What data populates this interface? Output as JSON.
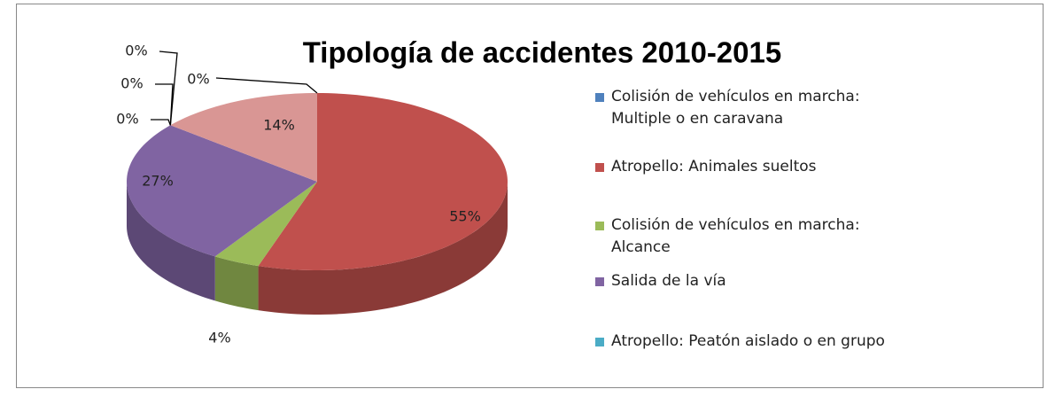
{
  "chart_data": {
    "type": "pie3d",
    "title": "Tipología de accidentes 2010-2015",
    "categories": [
      "Colisión de vehículos en marcha: Multiple o en caravana",
      "Atropello: Animales sueltos",
      "Colisión de vehículos en marcha: Alcance",
      "Salida de la vía",
      "Atropello: Peatón aislado o en grupo",
      null,
      null,
      null
    ],
    "values": [
      0,
      55,
      4,
      27,
      0,
      0,
      0,
      14
    ],
    "value_labels": [
      "0%",
      "55%",
      "4%",
      "27%",
      "0%",
      "0%",
      "0%",
      "14%"
    ],
    "colors": [
      "#4f81bd",
      "#c0504d",
      "#9bbb59",
      "#8064a2",
      "#4bacc6",
      "#f79646",
      "#2c4d75",
      "#d99694"
    ],
    "legend": "right"
  }
}
